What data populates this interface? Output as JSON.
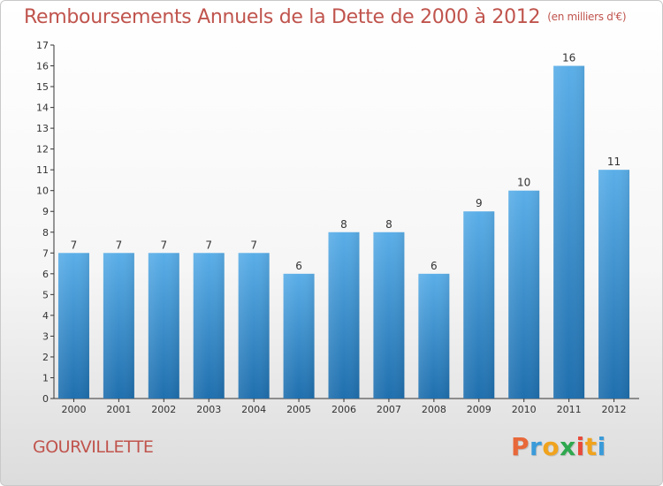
{
  "header": {
    "title": "Remboursements Annuels de la Dette de 2000 à 2012",
    "subtitle": "(en milliers d'€)"
  },
  "footer": {
    "commune": "GOURVILLETTE",
    "logo_text": "Proxiti"
  },
  "colors": {
    "title": "#c0544d",
    "bar_top": "#5aaee8",
    "bar_bottom": "#1f6fae",
    "axis": "#333333",
    "logo_letters": [
      "#e8683a",
      "#3a9bd9",
      "#f0a31d",
      "#2fa84f",
      "#e84a3a",
      "#f0a31d",
      "#3a9bd9"
    ]
  },
  "chart_data": {
    "type": "bar",
    "title": "Remboursements Annuels de la Dette de 2000 à 2012",
    "unit": "(en milliers d'€)",
    "categories": [
      "2000",
      "2001",
      "2002",
      "2003",
      "2004",
      "2005",
      "2006",
      "2007",
      "2008",
      "2009",
      "2010",
      "2011",
      "2012"
    ],
    "values": [
      7,
      7,
      7,
      7,
      7,
      6,
      8,
      8,
      6,
      9,
      10,
      16,
      11
    ],
    "ylim": [
      0,
      17
    ],
    "yticks": [
      0,
      1,
      2,
      3,
      4,
      5,
      6,
      7,
      8,
      9,
      10,
      11,
      12,
      13,
      14,
      15,
      16,
      17
    ],
    "xlabel": "",
    "ylabel": "",
    "grid": false
  }
}
